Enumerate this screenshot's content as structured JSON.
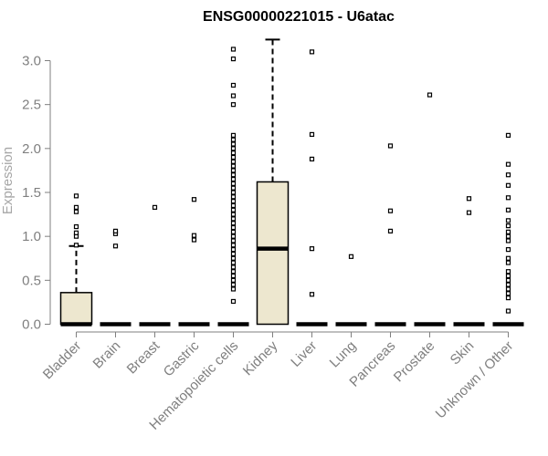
{
  "chart_data": {
    "type": "box",
    "title": "ENSG00000221015 - U6atac",
    "xlabel": "",
    "ylabel": "Expression",
    "ylim": [
      0,
      3.3
    ],
    "yticks": [
      "0.0",
      "0.5",
      "1.0",
      "1.5",
      "2.0",
      "2.5",
      "3.0"
    ],
    "grid": false,
    "legend": "none",
    "colors": {
      "box_fill": "#ede7cf",
      "box_stroke": "#000000",
      "axis": "#7f7f7f",
      "tick_label": "#7f7f7f"
    },
    "categories": [
      "Bladder",
      "Brain",
      "Breast",
      "Gastric",
      "Hematopoietic cells",
      "Kidney",
      "Liver",
      "Lung",
      "Pancreas",
      "Prostate",
      "Skin",
      "Unknown / Other"
    ],
    "boxes": [
      {
        "q1": 0,
        "median": 0,
        "q3": 0.36,
        "whisker_low": 0,
        "whisker_high": 0.89,
        "outliers": [
          0.9,
          1.0,
          1.04,
          1.11,
          1.28,
          1.33,
          1.46
        ]
      },
      {
        "q1": 0,
        "median": 0,
        "q3": 0,
        "whisker_low": 0,
        "whisker_high": 0,
        "outliers": [
          0.89,
          1.03,
          1.06
        ]
      },
      {
        "q1": 0,
        "median": 0,
        "q3": 0,
        "whisker_low": 0,
        "whisker_high": 0,
        "outliers": [
          1.33
        ]
      },
      {
        "q1": 0,
        "median": 0,
        "q3": 0,
        "whisker_low": 0,
        "whisker_high": 0,
        "outliers": [
          0.96,
          1.01,
          1.42
        ]
      },
      {
        "q1": 0,
        "median": 0,
        "q3": 0,
        "whisker_low": 0,
        "whisker_high": 0,
        "outliers": [
          0.26,
          0.4,
          0.45,
          0.5,
          0.55,
          0.6,
          0.65,
          0.7,
          0.75,
          0.8,
          0.85,
          0.9,
          0.95,
          1.0,
          1.05,
          1.1,
          1.15,
          1.2,
          1.25,
          1.3,
          1.35,
          1.4,
          1.45,
          1.5,
          1.55,
          1.6,
          1.65,
          1.7,
          1.75,
          1.8,
          1.85,
          1.9,
          1.95,
          2.0,
          2.05,
          2.1,
          2.15,
          2.5,
          2.6,
          2.72,
          3.02,
          3.13
        ]
      },
      {
        "q1": 0,
        "median": 0.86,
        "q3": 1.62,
        "whisker_low": 0,
        "whisker_high": 3.24,
        "outliers": []
      },
      {
        "q1": 0,
        "median": 0,
        "q3": 0,
        "whisker_low": 0,
        "whisker_high": 0,
        "outliers": [
          0.34,
          0.86,
          1.88,
          2.16,
          3.1
        ]
      },
      {
        "q1": 0,
        "median": 0,
        "q3": 0,
        "whisker_low": 0,
        "whisker_high": 0,
        "outliers": [
          0.77
        ]
      },
      {
        "q1": 0,
        "median": 0,
        "q3": 0,
        "whisker_low": 0,
        "whisker_high": 0,
        "outliers": [
          1.06,
          1.29,
          2.03
        ]
      },
      {
        "q1": 0,
        "median": 0,
        "q3": 0,
        "whisker_low": 0,
        "whisker_high": 0,
        "outliers": [
          2.61
        ]
      },
      {
        "q1": 0,
        "median": 0,
        "q3": 0,
        "whisker_low": 0,
        "whisker_high": 0,
        "outliers": [
          1.27,
          1.43
        ]
      },
      {
        "q1": 0,
        "median": 0,
        "q3": 0,
        "whisker_low": 0,
        "whisker_high": 0,
        "outliers": [
          0.15,
          0.3,
          0.35,
          0.4,
          0.45,
          0.5,
          0.55,
          0.6,
          0.7,
          0.75,
          0.85,
          0.95,
          1.0,
          1.05,
          1.12,
          1.18,
          1.3,
          1.44,
          1.58,
          1.7,
          1.82,
          2.15
        ]
      }
    ]
  }
}
